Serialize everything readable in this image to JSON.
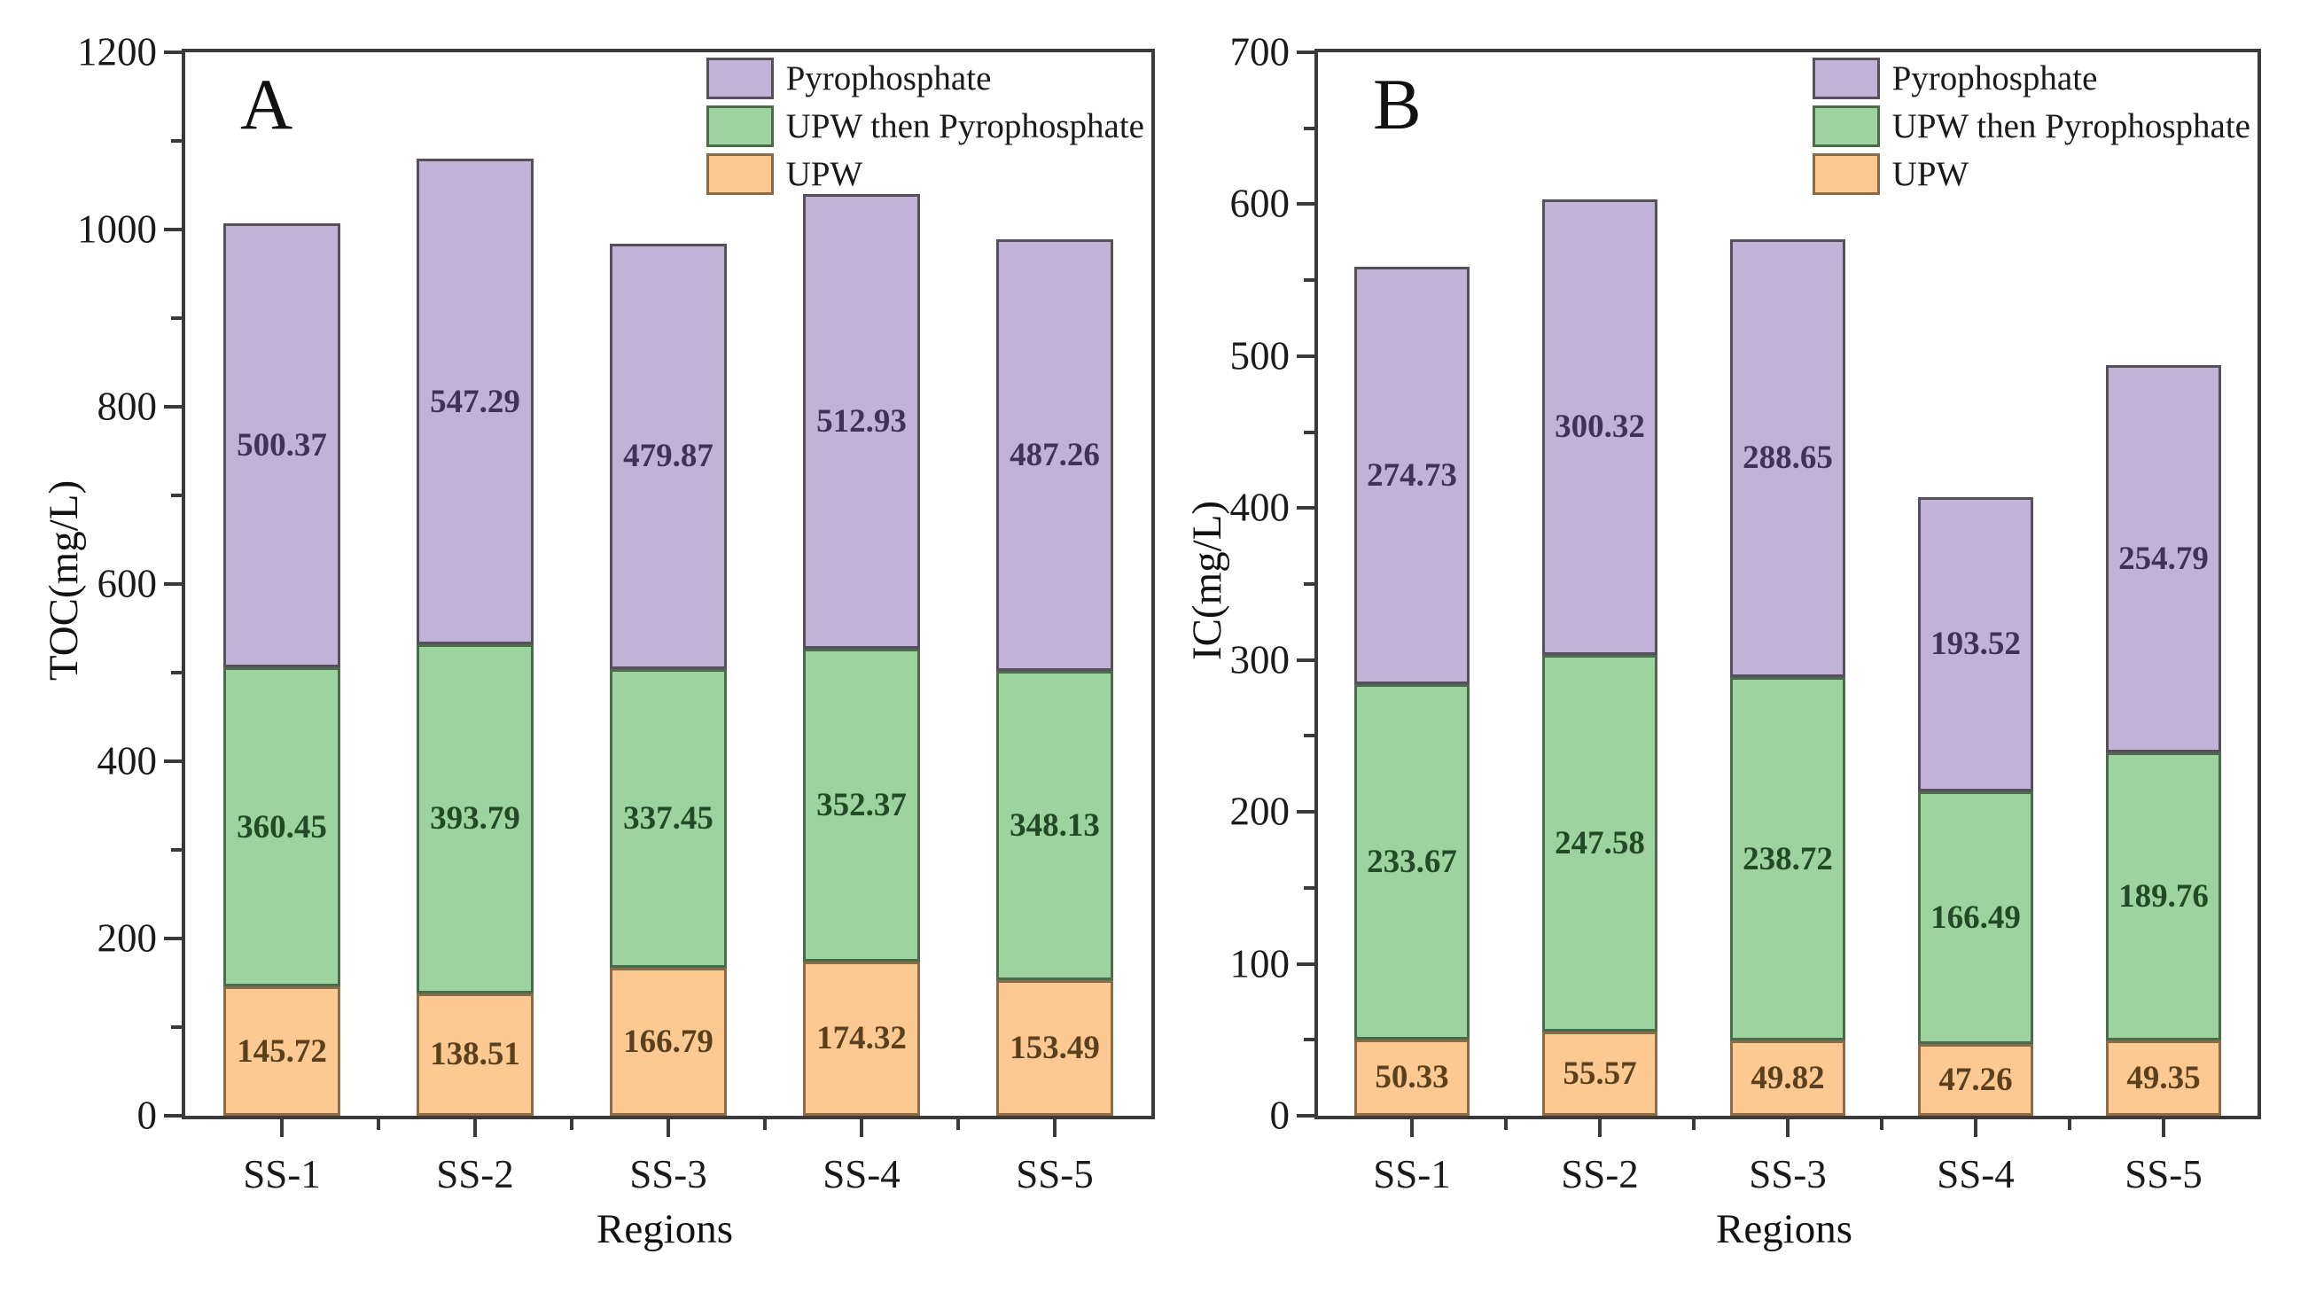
{
  "figure_background": "#ffffff",
  "series_styles": {
    "Pyrophosphate": {
      "fill": "#C1B2D8",
      "edge": "#55505C",
      "text": "#3F3456"
    },
    "UPW then Pyrophosphate": {
      "fill": "#9DD39E",
      "edge": "#4C6B4A",
      "text": "#234A26"
    },
    "UPW": {
      "fill": "#FBC991",
      "edge": "#8A6B45",
      "text": "#5B401D"
    }
  },
  "frame_color": "#3a3a3a",
  "chart_data": [
    {
      "type": "bar",
      "stacked": true,
      "panel_label": "A",
      "xlabel": "Regions",
      "ylabel": "TOC(mg/L)",
      "ylim": [
        0,
        1200
      ],
      "ytick_step": 200,
      "ytick_minor_step": 100,
      "grid": false,
      "legend_position": "top-right",
      "legend_order": [
        "Pyrophosphate",
        "UPW then Pyrophosphate",
        "UPW"
      ],
      "categories": [
        "SS-1",
        "SS-2",
        "SS-3",
        "SS-4",
        "SS-5"
      ],
      "series": [
        {
          "name": "UPW",
          "values": [
            145.72,
            138.51,
            166.79,
            174.32,
            153.49
          ]
        },
        {
          "name": "UPW then Pyrophosphate",
          "values": [
            360.45,
            393.79,
            337.45,
            352.37,
            348.13
          ]
        },
        {
          "name": "Pyrophosphate",
          "values": [
            500.37,
            547.29,
            479.87,
            512.93,
            487.26
          ]
        }
      ]
    },
    {
      "type": "bar",
      "stacked": true,
      "panel_label": "B",
      "xlabel": "Regions",
      "ylabel": "IC(mg/L)",
      "ylim": [
        0,
        700
      ],
      "ytick_step": 100,
      "ytick_minor_step": 50,
      "grid": false,
      "legend_position": "top-right",
      "legend_order": [
        "Pyrophosphate",
        "UPW then Pyrophosphate",
        "UPW"
      ],
      "categories": [
        "SS-1",
        "SS-2",
        "SS-3",
        "SS-4",
        "SS-5"
      ],
      "series": [
        {
          "name": "UPW",
          "values": [
            50.33,
            55.57,
            49.82,
            47.26,
            49.35
          ]
        },
        {
          "name": "UPW then Pyrophosphate",
          "values": [
            233.67,
            247.58,
            238.72,
            166.49,
            189.76
          ]
        },
        {
          "name": "Pyrophosphate",
          "values": [
            274.73,
            300.32,
            288.65,
            193.52,
            254.79
          ]
        }
      ]
    }
  ]
}
